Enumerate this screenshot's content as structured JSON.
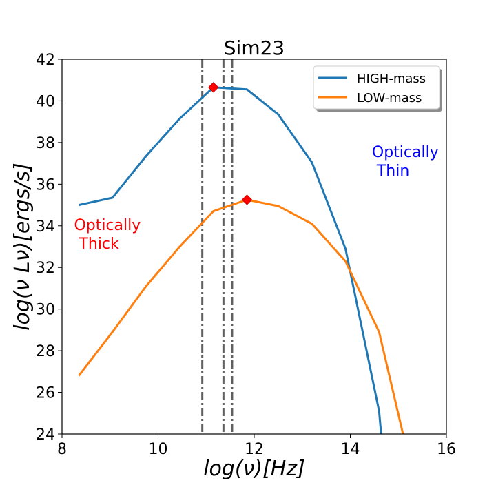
{
  "chart_data": {
    "type": "line",
    "title": "Sim23",
    "xlabel": "log(ν)[Hz]",
    "ylabel": "log(ν Lν)[ergs/s]",
    "xlim": [
      8,
      16
    ],
    "ylim": [
      24,
      42
    ],
    "xticks": [
      8,
      10,
      12,
      14,
      16
    ],
    "yticks": [
      24,
      26,
      28,
      30,
      32,
      34,
      36,
      38,
      40,
      42
    ],
    "grid": false,
    "legend": {
      "placement": "top-right"
    },
    "series": [
      {
        "name": "HIGH-mass",
        "color": "#1f77b4",
        "points": [
          [
            8.35,
            35.0
          ],
          [
            9.05,
            35.35
          ],
          [
            9.75,
            37.35
          ],
          [
            10.45,
            39.15
          ],
          [
            11.15,
            40.65
          ],
          [
            11.85,
            40.55
          ],
          [
            12.5,
            39.35
          ],
          [
            13.2,
            37.05
          ],
          [
            13.9,
            32.9
          ],
          [
            14.6,
            25.1
          ],
          [
            14.72,
            22.0
          ]
        ]
      },
      {
        "name": "LOW-mass",
        "color": "#ff7f0e",
        "points": [
          [
            8.35,
            26.8
          ],
          [
            9.05,
            28.9
          ],
          [
            9.75,
            31.1
          ],
          [
            10.45,
            33.0
          ],
          [
            11.15,
            34.7
          ],
          [
            11.85,
            35.25
          ],
          [
            12.5,
            34.95
          ],
          [
            13.2,
            34.1
          ],
          [
            13.9,
            32.3
          ],
          [
            14.6,
            28.9
          ],
          [
            15.3,
            22.0
          ]
        ]
      }
    ],
    "peak_markers": {
      "color": "#ff0000",
      "points": [
        [
          11.15,
          40.65
        ],
        [
          11.85,
          35.25
        ]
      ]
    },
    "vertical_lines": {
      "color": "#606060",
      "x": [
        10.92,
        11.36,
        11.54
      ]
    },
    "annotations": [
      {
        "text": "Optically\n Thick",
        "color": "#ff0000",
        "x": 8.25,
        "y": 33.8
      },
      {
        "text": "Optically\n Thin",
        "color": "#0000ff",
        "x": 14.45,
        "y": 37.3
      }
    ]
  }
}
